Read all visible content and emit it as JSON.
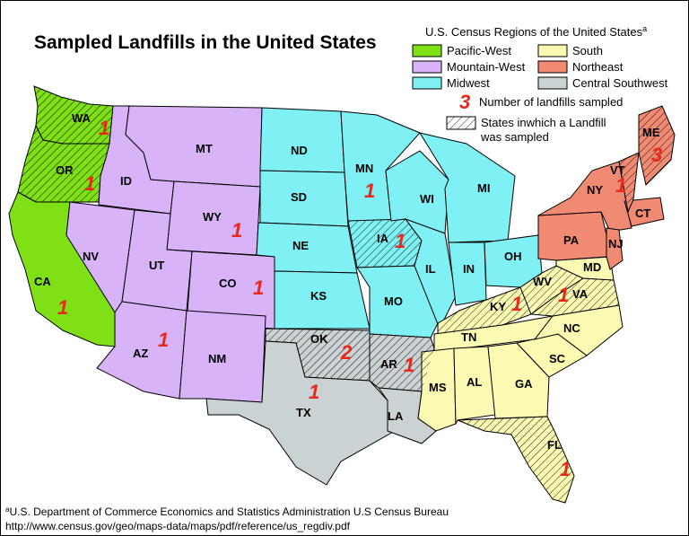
{
  "title": "Sampled Landfills in the United States",
  "legend": {
    "title": "U.S. Census Regions of the United States",
    "title_superscript": "a",
    "regions": [
      {
        "key": "pacific_west",
        "label": "Pacific-West",
        "color": "#7fe016"
      },
      {
        "key": "mountain_west",
        "label": "Mountain-West",
        "color": "#d9b3f7"
      },
      {
        "key": "midwest",
        "label": "Midwest",
        "color": "#7ff0f3"
      },
      {
        "key": "south",
        "label": "South",
        "color": "#fafab3"
      },
      {
        "key": "northeast",
        "label": "Northeast",
        "color": "#f08a72"
      },
      {
        "key": "central_southwest",
        "label": "Central Southwest",
        "color": "#cbd2d3"
      }
    ],
    "count_symbol": "3",
    "count_label": "Number of landfills sampled",
    "hatch_label_line1": "States inwhich a Landfill",
    "hatch_label_line2": "was sampled",
    "count_color": "#e8281b"
  },
  "states": {
    "WA": {
      "label": "WA",
      "region": "pacific_west",
      "count": "1",
      "sampled": true
    },
    "OR": {
      "label": "OR",
      "region": "pacific_west",
      "count": "1",
      "sampled": true
    },
    "CA": {
      "label": "CA",
      "region": "pacific_west",
      "count": "1",
      "sampled": false
    },
    "ID": {
      "label": "ID",
      "region": "mountain_west"
    },
    "MT": {
      "label": "MT",
      "region": "mountain_west"
    },
    "WY": {
      "label": "WY",
      "region": "mountain_west",
      "count": "1"
    },
    "NV": {
      "label": "NV",
      "region": "mountain_west"
    },
    "UT": {
      "label": "UT",
      "region": "mountain_west"
    },
    "CO": {
      "label": "CO",
      "region": "mountain_west",
      "count": "1"
    },
    "AZ": {
      "label": "AZ",
      "region": "mountain_west",
      "count": "1"
    },
    "NM": {
      "label": "NM",
      "region": "mountain_west"
    },
    "ND": {
      "label": "ND",
      "region": "midwest"
    },
    "SD": {
      "label": "SD",
      "region": "midwest"
    },
    "NE": {
      "label": "NE",
      "region": "midwest"
    },
    "KS": {
      "label": "KS",
      "region": "midwest"
    },
    "MN": {
      "label": "MN",
      "region": "midwest",
      "count": "1"
    },
    "IA": {
      "label": "IA",
      "region": "midwest",
      "count": "1",
      "sampled": true
    },
    "MO": {
      "label": "MO",
      "region": "midwest"
    },
    "WI": {
      "label": "WI",
      "region": "midwest"
    },
    "IL": {
      "label": "IL",
      "region": "midwest"
    },
    "IN": {
      "label": "IN",
      "region": "midwest"
    },
    "MI": {
      "label": "MI",
      "region": "midwest"
    },
    "OH": {
      "label": "OH",
      "region": "midwest"
    },
    "OK": {
      "label": "OK",
      "region": "central_southwest",
      "count": "2",
      "sampled": true
    },
    "TX": {
      "label": "TX",
      "region": "central_southwest",
      "count": "1"
    },
    "AR": {
      "label": "AR",
      "region": "central_southwest",
      "count": "1",
      "sampled": true
    },
    "LA": {
      "label": "LA",
      "region": "central_southwest"
    },
    "KY": {
      "label": "KY",
      "region": "south",
      "count": "1",
      "sampled": true
    },
    "TN": {
      "label": "TN",
      "region": "south"
    },
    "MS": {
      "label": "MS",
      "region": "south"
    },
    "AL": {
      "label": "AL",
      "region": "south"
    },
    "GA": {
      "label": "GA",
      "region": "south"
    },
    "FL": {
      "label": "FL",
      "region": "south",
      "count": "1",
      "sampled": true
    },
    "SC": {
      "label": "SC",
      "region": "south"
    },
    "NC": {
      "label": "NC",
      "region": "south"
    },
    "VA": {
      "label": "VA",
      "region": "south",
      "count": "1",
      "sampled": true
    },
    "WV": {
      "label": "WV",
      "region": "south",
      "sampled": true
    },
    "MD": {
      "label": "MD",
      "region": "south"
    },
    "PA": {
      "label": "PA",
      "region": "northeast"
    },
    "NY": {
      "label": "NY",
      "region": "northeast"
    },
    "NJ": {
      "label": "NJ",
      "region": "northeast"
    },
    "CT": {
      "label": "CT",
      "region": "northeast"
    },
    "VT": {
      "label": "VT",
      "region": "northeast",
      "count": "1",
      "sampled": true
    },
    "ME": {
      "label": "ME",
      "region": "northeast",
      "count": "3",
      "sampled": true
    }
  },
  "footnote": {
    "marker": "a",
    "line1": "U.S. Department of Commerce Economics and Statistics Administration U.S Census Bureau",
    "line2": "http://www.census.gov/geo/maps-data/maps/pdf/reference/us_regdiv.pdf"
  }
}
